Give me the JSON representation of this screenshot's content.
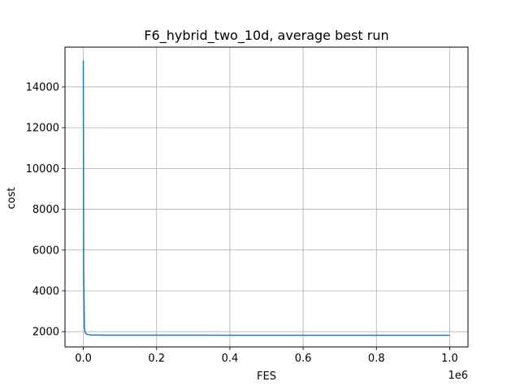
{
  "chart_data": {
    "type": "line",
    "title": "F6_hybrid_two_10d, average best run",
    "xlabel": "FES",
    "ylabel": "cost",
    "x_offset_label": "1e6",
    "xlim": [
      -50000,
      1050000
    ],
    "ylim": [
      1250,
      15950
    ],
    "x_ticks": [
      0,
      200000,
      400000,
      600000,
      800000,
      1000000
    ],
    "x_tick_labels": [
      "0.0",
      "0.2",
      "0.4",
      "0.6",
      "0.8",
      "1.0"
    ],
    "y_ticks": [
      2000,
      4000,
      6000,
      8000,
      10000,
      12000,
      14000
    ],
    "y_tick_labels": [
      "2000",
      "4000",
      "6000",
      "8000",
      "10000",
      "12000",
      "14000"
    ],
    "grid": true,
    "series": [
      {
        "color": "#1f77b4",
        "x": [
          0,
          1000,
          3000,
          5000,
          10000,
          20000,
          50000,
          100000,
          200000,
          400000,
          600000,
          800000,
          1000000
        ],
        "y": [
          15300,
          5000,
          2200,
          1950,
          1870,
          1840,
          1830,
          1828,
          1826,
          1825,
          1825,
          1825,
          1825
        ]
      }
    ]
  }
}
